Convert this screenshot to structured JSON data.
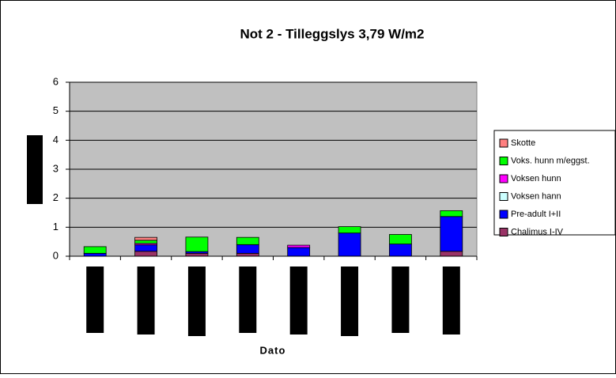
{
  "chart_data": {
    "type": "stacked-bar",
    "title": "Not 2 - Tilleggslys 3,79 W/m2",
    "x_label": "Dato",
    "categories": [
      null,
      null,
      null,
      null,
      null,
      null,
      null,
      null
    ],
    "series": [
      {
        "name": "Chalimus I-IV",
        "color": "#993366",
        "values": [
          0,
          0.17,
          0.1,
          0.1,
          0,
          0,
          0,
          0.17
        ]
      },
      {
        "name": "Pre-adult I+II",
        "color": "#0000ff",
        "values": [
          0.1,
          0.22,
          0.06,
          0.3,
          0.3,
          0.8,
          0.42,
          1.2
        ]
      },
      {
        "name": "Voksen hann",
        "color": "#ccffff",
        "values": [
          0,
          0,
          0,
          0,
          0,
          0,
          0,
          0
        ]
      },
      {
        "name": "Voksen hunn",
        "color": "#ff00ff",
        "values": [
          0,
          0.05,
          0,
          0,
          0.08,
          0,
          0,
          0
        ]
      },
      {
        "name": "Voks. hunn m/eggst.",
        "color": "#00ff00",
        "values": [
          0.23,
          0.11,
          0.5,
          0.25,
          0,
          0.22,
          0.33,
          0.2
        ]
      },
      {
        "name": "Skotte",
        "color": "#ff8080",
        "values": [
          0,
          0.1,
          0,
          0,
          0,
          0,
          0,
          0
        ]
      }
    ],
    "ylim": [
      0,
      6
    ],
    "yticks": [
      0,
      1,
      2,
      3,
      4,
      5,
      6
    ],
    "grid": true,
    "plot_background": "#c0c0c0",
    "legend": "right"
  }
}
